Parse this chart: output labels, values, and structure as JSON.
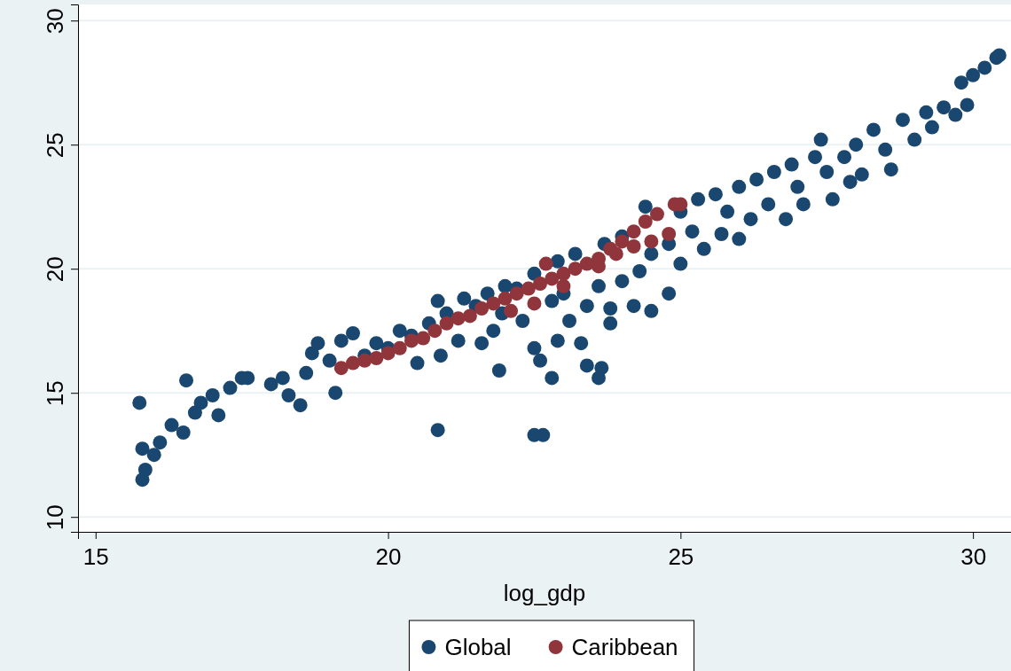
{
  "chart_data": {
    "type": "scatter",
    "xlabel": "log_gdp",
    "xlim": [
      14.7,
      30.65
    ],
    "ylim": [
      9.4,
      30.65
    ],
    "xticks": [
      15,
      20,
      25,
      30
    ],
    "yticks": [
      10,
      15,
      20,
      25,
      30
    ],
    "grid": "y",
    "legend": "bottom",
    "marker": "circle",
    "series": [
      {
        "name": "Global",
        "color": "#1a476f",
        "x": [
          15.75,
          15.8,
          15.8,
          15.85,
          16.0,
          16.1,
          16.3,
          16.5,
          16.55,
          16.7,
          16.8,
          17.0,
          17.1,
          17.3,
          17.5,
          17.6,
          18.0,
          18.2,
          18.3,
          18.5,
          18.6,
          18.7,
          18.8,
          19.0,
          19.2,
          19.1,
          19.4,
          19.6,
          19.8,
          20.0,
          20.2,
          20.4,
          20.5,
          20.7,
          20.85,
          20.9,
          20.85,
          21.0,
          21.2,
          21.3,
          21.5,
          21.6,
          21.7,
          21.8,
          21.95,
          22.0,
          21.9,
          22.2,
          22.3,
          22.5,
          22.5,
          22.5,
          22.65,
          22.6,
          22.8,
          22.8,
          22.9,
          22.9,
          23.0,
          23.1,
          23.2,
          23.3,
          23.4,
          23.4,
          23.6,
          23.65,
          23.7,
          23.6,
          23.8,
          23.8,
          24.0,
          24.0,
          24.2,
          24.3,
          24.4,
          24.5,
          24.5,
          24.8,
          24.8,
          25.0,
          25.0,
          25.2,
          25.3,
          25.4,
          25.6,
          25.7,
          25.8,
          26.0,
          26.0,
          26.2,
          26.3,
          26.5,
          26.6,
          26.8,
          26.9,
          27.0,
          27.1,
          27.3,
          27.4,
          27.5,
          27.6,
          27.8,
          27.9,
          28.0,
          28.1,
          28.3,
          28.5,
          28.6,
          28.8,
          29.0,
          29.2,
          29.3,
          29.5,
          29.7,
          29.9,
          29.8,
          30.0,
          30.2,
          30.4,
          30.45
        ],
        "values": [
          14.6,
          12.75,
          11.5,
          11.9,
          12.5,
          13.0,
          13.7,
          13.4,
          15.5,
          14.2,
          14.6,
          14.9,
          14.1,
          15.2,
          15.6,
          15.6,
          15.35,
          15.6,
          14.9,
          14.5,
          15.8,
          16.6,
          17.0,
          16.3,
          17.1,
          15.0,
          17.4,
          16.5,
          17.0,
          16.8,
          17.5,
          17.3,
          16.2,
          17.8,
          18.7,
          16.5,
          13.5,
          18.2,
          17.1,
          18.8,
          18.5,
          17.0,
          19.0,
          17.5,
          18.2,
          19.3,
          15.9,
          19.2,
          17.9,
          19.8,
          16.8,
          13.3,
          13.3,
          16.3,
          18.7,
          15.6,
          20.3,
          17.1,
          19.0,
          17.9,
          20.6,
          17.0,
          18.5,
          16.1,
          15.6,
          16.0,
          21.0,
          19.3,
          17.8,
          18.4,
          21.3,
          19.5,
          18.5,
          19.9,
          22.5,
          20.6,
          18.3,
          19.0,
          21.0,
          22.3,
          20.2,
          21.5,
          22.8,
          20.8,
          23.0,
          21.4,
          22.3,
          23.3,
          21.2,
          22.0,
          23.6,
          22.6,
          23.9,
          22.0,
          24.2,
          23.3,
          22.6,
          24.5,
          25.2,
          23.9,
          22.8,
          24.5,
          23.5,
          25.0,
          23.8,
          25.6,
          24.8,
          24.0,
          26.0,
          25.2,
          26.3,
          25.7,
          26.5,
          26.2,
          26.6,
          27.5,
          27.8,
          28.1,
          28.5,
          28.6
        ]
      },
      {
        "name": "Caribbean",
        "color": "#90353b",
        "x": [
          19.2,
          19.4,
          19.6,
          19.8,
          20.0,
          20.2,
          20.4,
          20.6,
          20.8,
          21.0,
          21.2,
          21.4,
          21.6,
          21.8,
          22.0,
          22.2,
          22.4,
          22.6,
          22.7,
          22.8,
          23.0,
          23.2,
          23.4,
          23.6,
          23.8,
          24.0,
          24.2,
          24.4,
          24.6,
          24.9,
          25.0,
          23.6,
          23.9,
          24.2,
          24.5,
          24.8,
          22.5,
          22.1,
          23.0
        ],
        "values": [
          16.0,
          16.2,
          16.3,
          16.4,
          16.6,
          16.8,
          17.1,
          17.2,
          17.5,
          17.8,
          18.0,
          18.1,
          18.4,
          18.6,
          18.8,
          19.0,
          19.2,
          19.4,
          20.2,
          19.6,
          19.8,
          20.0,
          20.2,
          20.4,
          20.8,
          21.1,
          21.5,
          21.9,
          22.2,
          22.6,
          22.6,
          20.1,
          20.6,
          20.9,
          21.1,
          21.4,
          18.6,
          18.3,
          19.3
        ]
      }
    ]
  }
}
